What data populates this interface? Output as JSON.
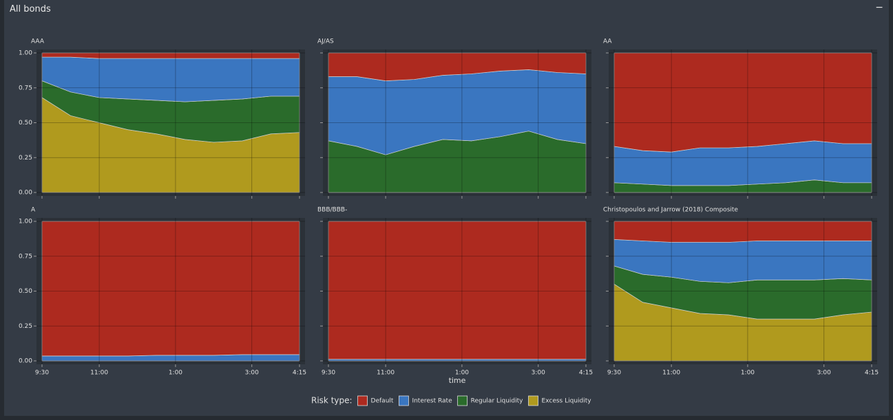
{
  "header": {
    "title": "All bonds",
    "button": "−"
  },
  "xlabel": "time",
  "legend_title": "Risk type:",
  "chart_data": [
    {
      "type": "stacked-area",
      "title": "AAA",
      "x": [
        0,
        45,
        90,
        135,
        180,
        225,
        270,
        315,
        360,
        405
      ],
      "xlim": [
        0,
        405
      ],
      "xticks": [
        {
          "value": 0,
          "label": "9:30"
        },
        {
          "value": 90,
          "label": "11:00"
        },
        {
          "value": 210,
          "label": "1:00"
        },
        {
          "value": 330,
          "label": "3:00"
        },
        {
          "value": 405,
          "label": "4:15"
        }
      ],
      "ylim": [
        0,
        1
      ],
      "yticks": [
        {
          "value": 0,
          "label": "0.00"
        },
        {
          "value": 0.25,
          "label": "0.25"
        },
        {
          "value": 0.5,
          "label": "0.50"
        },
        {
          "value": 0.75,
          "label": "0.75"
        },
        {
          "value": 1,
          "label": "1.00"
        }
      ],
      "series": [
        {
          "name": "Default",
          "color": "#ad2a1f",
          "values": [
            0.03,
            0.03,
            0.04,
            0.04,
            0.04,
            0.04,
            0.04,
            0.04,
            0.04,
            0.04
          ]
        },
        {
          "name": "Interest Rate",
          "color": "#3a76c0",
          "values": [
            0.17,
            0.25,
            0.28,
            0.29,
            0.3,
            0.31,
            0.3,
            0.29,
            0.27,
            0.27
          ]
        },
        {
          "name": "Regular Liquidity",
          "color": "#2a6b2b",
          "values": [
            0.12,
            0.17,
            0.18,
            0.22,
            0.24,
            0.27,
            0.3,
            0.3,
            0.27,
            0.26
          ]
        },
        {
          "name": "Excess Liquidity",
          "color": "#b09a1e",
          "values": [
            0.68,
            0.55,
            0.5,
            0.45,
            0.42,
            0.38,
            0.36,
            0.37,
            0.42,
            0.43
          ]
        }
      ]
    },
    {
      "type": "stacked-area",
      "title": "AJ/AS",
      "x": [
        0,
        45,
        90,
        135,
        180,
        225,
        270,
        315,
        360,
        405
      ],
      "xlim": [
        0,
        405
      ],
      "xticks": [
        {
          "value": 0,
          "label": "9:30"
        },
        {
          "value": 90,
          "label": "11:00"
        },
        {
          "value": 210,
          "label": "1:00"
        },
        {
          "value": 330,
          "label": "3:00"
        },
        {
          "value": 405,
          "label": "4:15"
        }
      ],
      "ylim": [
        0,
        1
      ],
      "yticks": [
        {
          "value": 0,
          "label": "0.00"
        },
        {
          "value": 0.25,
          "label": "0.25"
        },
        {
          "value": 0.5,
          "label": "0.50"
        },
        {
          "value": 0.75,
          "label": "0.75"
        },
        {
          "value": 1,
          "label": "1.00"
        }
      ],
      "series": [
        {
          "name": "Default",
          "color": "#ad2a1f",
          "values": [
            0.17,
            0.17,
            0.2,
            0.19,
            0.16,
            0.15,
            0.13,
            0.12,
            0.14,
            0.15
          ]
        },
        {
          "name": "Interest Rate",
          "color": "#3a76c0",
          "values": [
            0.46,
            0.5,
            0.53,
            0.48,
            0.46,
            0.48,
            0.47,
            0.44,
            0.48,
            0.5
          ]
        },
        {
          "name": "Regular Liquidity",
          "color": "#2a6b2b",
          "values": [
            0.37,
            0.33,
            0.27,
            0.33,
            0.38,
            0.37,
            0.4,
            0.44,
            0.38,
            0.35
          ]
        },
        {
          "name": "Excess Liquidity",
          "color": "#b09a1e",
          "values": [
            0,
            0,
            0,
            0,
            0,
            0,
            0,
            0,
            0,
            0
          ]
        }
      ]
    },
    {
      "type": "stacked-area",
      "title": "AA",
      "x": [
        0,
        45,
        90,
        135,
        180,
        225,
        270,
        315,
        360,
        405
      ],
      "xlim": [
        0,
        405
      ],
      "xticks": [
        {
          "value": 0,
          "label": "9:30"
        },
        {
          "value": 90,
          "label": "11:00"
        },
        {
          "value": 210,
          "label": "1:00"
        },
        {
          "value": 330,
          "label": "3:00"
        },
        {
          "value": 405,
          "label": "4:15"
        }
      ],
      "ylim": [
        0,
        1
      ],
      "yticks": [
        {
          "value": 0,
          "label": "0.00"
        },
        {
          "value": 0.25,
          "label": "0.25"
        },
        {
          "value": 0.5,
          "label": "0.50"
        },
        {
          "value": 0.75,
          "label": "0.75"
        },
        {
          "value": 1,
          "label": "1.00"
        }
      ],
      "series": [
        {
          "name": "Default",
          "color": "#ad2a1f",
          "values": [
            0.67,
            0.7,
            0.71,
            0.68,
            0.68,
            0.67,
            0.65,
            0.63,
            0.65,
            0.65
          ]
        },
        {
          "name": "Interest Rate",
          "color": "#3a76c0",
          "values": [
            0.26,
            0.24,
            0.24,
            0.27,
            0.27,
            0.27,
            0.28,
            0.28,
            0.28,
            0.28
          ]
        },
        {
          "name": "Regular Liquidity",
          "color": "#2a6b2b",
          "values": [
            0.07,
            0.06,
            0.05,
            0.05,
            0.05,
            0.06,
            0.07,
            0.09,
            0.07,
            0.07
          ]
        },
        {
          "name": "Excess Liquidity",
          "color": "#b09a1e",
          "values": [
            0,
            0,
            0,
            0,
            0,
            0,
            0,
            0,
            0,
            0
          ]
        }
      ]
    },
    {
      "type": "stacked-area",
      "title": "A",
      "x": [
        0,
        45,
        90,
        135,
        180,
        225,
        270,
        315,
        360,
        405
      ],
      "xlim": [
        0,
        405
      ],
      "xticks": [
        {
          "value": 0,
          "label": "9:30"
        },
        {
          "value": 90,
          "label": "11:00"
        },
        {
          "value": 210,
          "label": "1:00"
        },
        {
          "value": 330,
          "label": "3:00"
        },
        {
          "value": 405,
          "label": "4:15"
        }
      ],
      "ylim": [
        0,
        1
      ],
      "yticks": [
        {
          "value": 0,
          "label": "0.00"
        },
        {
          "value": 0.25,
          "label": "0.25"
        },
        {
          "value": 0.5,
          "label": "0.50"
        },
        {
          "value": 0.75,
          "label": "0.75"
        },
        {
          "value": 1,
          "label": "1.00"
        }
      ],
      "series": [
        {
          "name": "Default",
          "color": "#ad2a1f",
          "values": [
            0.965,
            0.965,
            0.965,
            0.965,
            0.96,
            0.96,
            0.96,
            0.955,
            0.955,
            0.955
          ]
        },
        {
          "name": "Interest Rate",
          "color": "#3a76c0",
          "values": [
            0.035,
            0.035,
            0.035,
            0.035,
            0.04,
            0.04,
            0.04,
            0.045,
            0.045,
            0.045
          ]
        },
        {
          "name": "Regular Liquidity",
          "color": "#2a6b2b",
          "values": [
            0,
            0,
            0,
            0,
            0,
            0,
            0,
            0,
            0,
            0
          ]
        },
        {
          "name": "Excess Liquidity",
          "color": "#b09a1e",
          "values": [
            0,
            0,
            0,
            0,
            0,
            0,
            0,
            0,
            0,
            0
          ]
        }
      ]
    },
    {
      "type": "stacked-area",
      "title": "BBB/BBB-",
      "x": [
        0,
        45,
        90,
        135,
        180,
        225,
        270,
        315,
        360,
        405
      ],
      "xlim": [
        0,
        405
      ],
      "xticks": [
        {
          "value": 0,
          "label": "9:30"
        },
        {
          "value": 90,
          "label": "11:00"
        },
        {
          "value": 210,
          "label": "1:00"
        },
        {
          "value": 330,
          "label": "3:00"
        },
        {
          "value": 405,
          "label": "4:15"
        }
      ],
      "ylim": [
        0,
        1
      ],
      "yticks": [
        {
          "value": 0,
          "label": "0.00"
        },
        {
          "value": 0.25,
          "label": "0.25"
        },
        {
          "value": 0.5,
          "label": "0.50"
        },
        {
          "value": 0.75,
          "label": "0.75"
        },
        {
          "value": 1,
          "label": "1.00"
        }
      ],
      "series": [
        {
          "name": "Default",
          "color": "#ad2a1f",
          "values": [
            0.988,
            0.988,
            0.988,
            0.988,
            0.988,
            0.988,
            0.988,
            0.988,
            0.988,
            0.988
          ]
        },
        {
          "name": "Interest Rate",
          "color": "#3a76c0",
          "values": [
            0.012,
            0.012,
            0.012,
            0.012,
            0.012,
            0.012,
            0.012,
            0.012,
            0.012,
            0.012
          ]
        },
        {
          "name": "Regular Liquidity",
          "color": "#2a6b2b",
          "values": [
            0,
            0,
            0,
            0,
            0,
            0,
            0,
            0,
            0,
            0
          ]
        },
        {
          "name": "Excess Liquidity",
          "color": "#b09a1e",
          "values": [
            0,
            0,
            0,
            0,
            0,
            0,
            0,
            0,
            0,
            0
          ]
        }
      ]
    },
    {
      "type": "stacked-area",
      "title": "Christopoulos and Jarrow (2018) Composite",
      "x": [
        0,
        45,
        90,
        135,
        180,
        225,
        270,
        315,
        360,
        405
      ],
      "xlim": [
        0,
        405
      ],
      "xticks": [
        {
          "value": 0,
          "label": "9:30"
        },
        {
          "value": 90,
          "label": "11:00"
        },
        {
          "value": 210,
          "label": "1:00"
        },
        {
          "value": 330,
          "label": "3:00"
        },
        {
          "value": 405,
          "label": "4:15"
        }
      ],
      "ylim": [
        0,
        1
      ],
      "yticks": [
        {
          "value": 0,
          "label": "0.00"
        },
        {
          "value": 0.25,
          "label": "0.25"
        },
        {
          "value": 0.5,
          "label": "0.50"
        },
        {
          "value": 0.75,
          "label": "0.75"
        },
        {
          "value": 1,
          "label": "1.00"
        }
      ],
      "series": [
        {
          "name": "Default",
          "color": "#ad2a1f",
          "values": [
            0.13,
            0.14,
            0.15,
            0.15,
            0.15,
            0.14,
            0.14,
            0.14,
            0.14,
            0.14
          ]
        },
        {
          "name": "Interest Rate",
          "color": "#3a76c0",
          "values": [
            0.19,
            0.24,
            0.25,
            0.28,
            0.29,
            0.28,
            0.28,
            0.28,
            0.27,
            0.28
          ]
        },
        {
          "name": "Regular Liquidity",
          "color": "#2a6b2b",
          "values": [
            0.13,
            0.2,
            0.22,
            0.23,
            0.23,
            0.28,
            0.28,
            0.28,
            0.26,
            0.23
          ]
        },
        {
          "name": "Excess Liquidity",
          "color": "#b09a1e",
          "values": [
            0.55,
            0.42,
            0.38,
            0.34,
            0.33,
            0.3,
            0.3,
            0.3,
            0.33,
            0.35
          ]
        }
      ]
    }
  ]
}
